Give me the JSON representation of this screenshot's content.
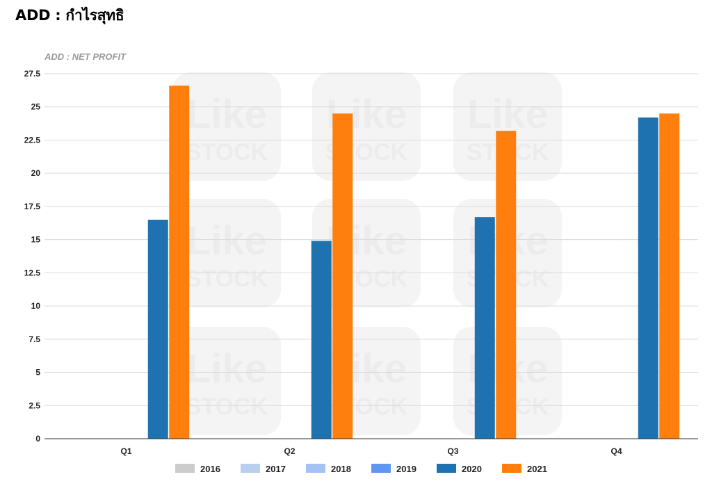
{
  "page": {
    "title": "ADD : กำไรสุทธิ"
  },
  "watermark": {
    "line1": "Like",
    "line2": "STOCK"
  },
  "chart_data": {
    "type": "bar",
    "title": "ADD : NET PROFIT",
    "xlabel": "",
    "ylabel": "",
    "categories": [
      "Q1",
      "Q2",
      "Q3",
      "Q4"
    ],
    "ylim": [
      0,
      27.5
    ],
    "yticks": [
      0,
      2.5,
      5,
      7.5,
      10,
      12.5,
      15,
      17.5,
      20,
      22.5,
      25,
      27.5
    ],
    "grid": true,
    "legend_position": "bottom",
    "series": [
      {
        "name": "2016",
        "color": "#cccccc",
        "values": [
          null,
          null,
          null,
          null
        ]
      },
      {
        "name": "2017",
        "color": "#b9cfee",
        "values": [
          null,
          null,
          null,
          null
        ]
      },
      {
        "name": "2018",
        "color": "#a4c2f4",
        "values": [
          null,
          null,
          null,
          null
        ]
      },
      {
        "name": "2019",
        "color": "#6096f0",
        "values": [
          null,
          null,
          null,
          null
        ]
      },
      {
        "name": "2020",
        "color": "#1f72b0",
        "values": [
          16.5,
          14.9,
          16.7,
          24.2
        ]
      },
      {
        "name": "2021",
        "color": "#ff7f0e",
        "values": [
          26.6,
          24.5,
          23.2,
          24.5
        ]
      }
    ]
  }
}
